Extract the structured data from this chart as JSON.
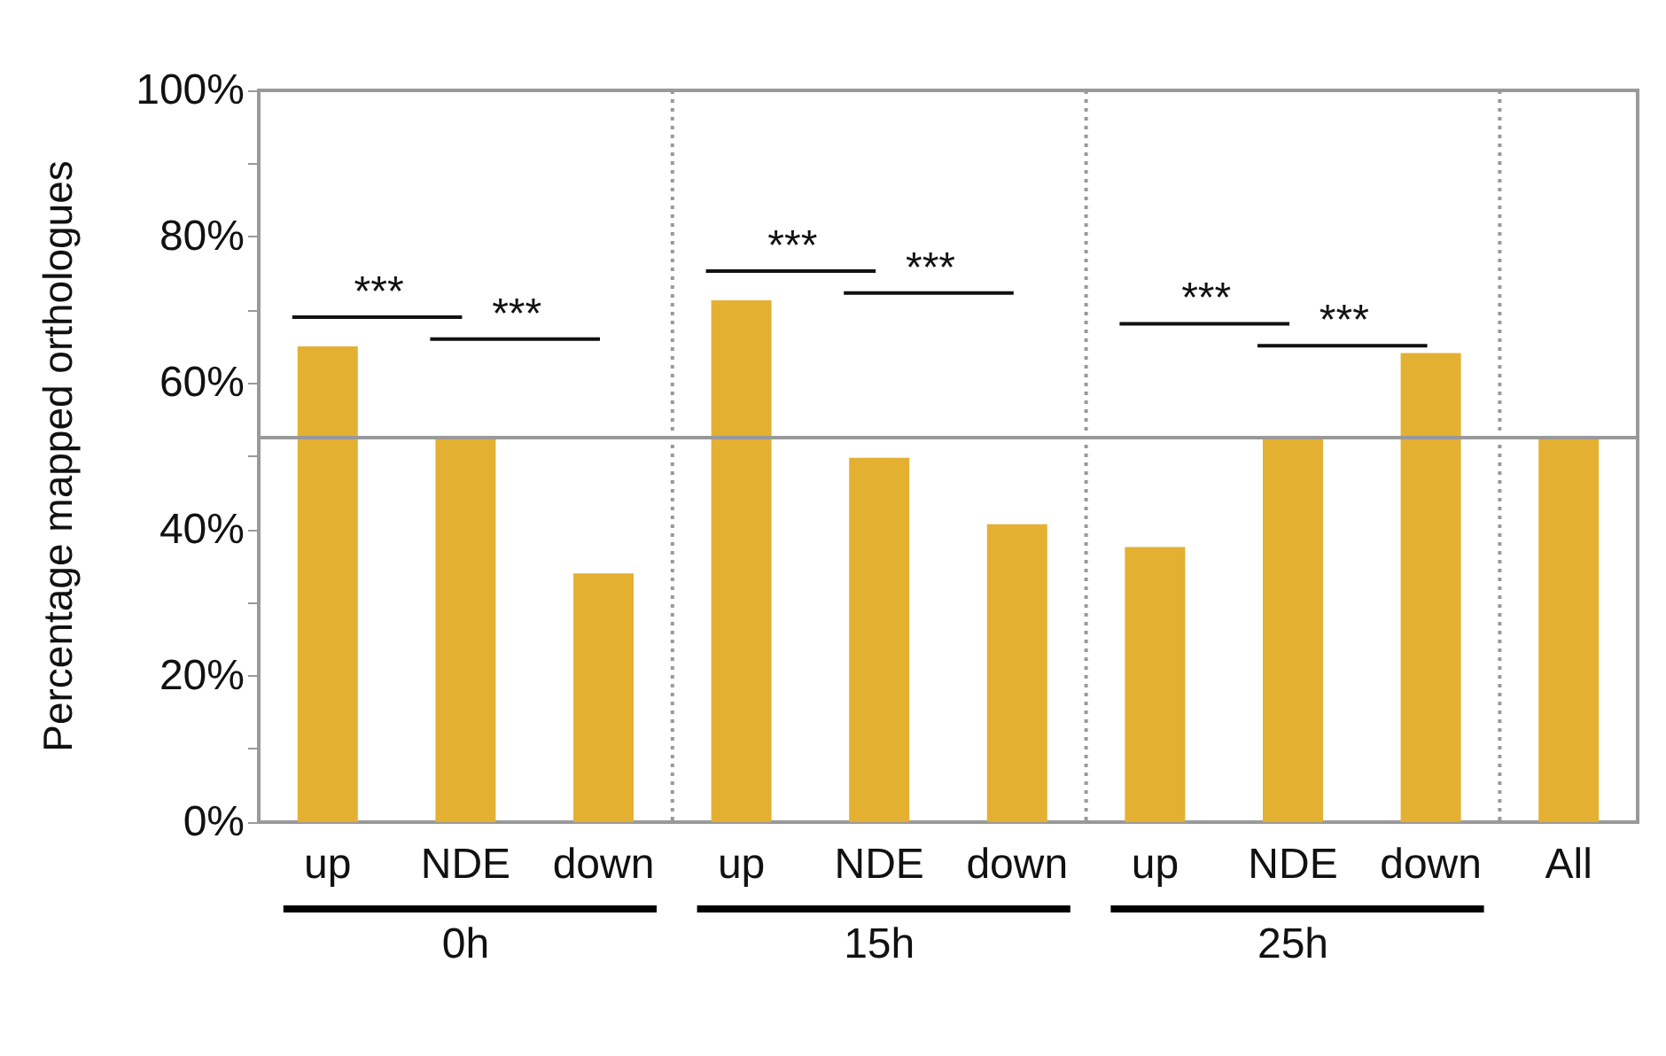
{
  "chart_data": {
    "type": "bar",
    "ylabel": "Percentage mapped orthologues",
    "categories": [
      "up",
      "NDE",
      "down",
      "up",
      "NDE",
      "down",
      "up",
      "NDE",
      "down",
      "All"
    ],
    "values": [
      65,
      52.6,
      34,
      71.3,
      49.8,
      40.7,
      37.6,
      52.6,
      64.1,
      52.6
    ],
    "color": "#e3b032",
    "ylim": [
      0,
      100
    ],
    "yticks": [
      {
        "value": 0,
        "label": "0%"
      },
      {
        "value": 10,
        "label": null
      },
      {
        "value": 20,
        "label": "20%"
      },
      {
        "value": 30,
        "label": null
      },
      {
        "value": 40,
        "label": "40%"
      },
      {
        "value": 50,
        "label": null
      },
      {
        "value": 60,
        "label": "60%"
      },
      {
        "value": 70,
        "label": null
      },
      {
        "value": 80,
        "label": "80%"
      },
      {
        "value": 90,
        "label": null
      },
      {
        "value": 100,
        "label": "100%"
      }
    ],
    "ref_lines": [
      {
        "axis": "y",
        "value": 52.6,
        "color": "#999999",
        "line_style": "solid"
      }
    ],
    "annotations": [
      "***",
      "***",
      "***",
      "***",
      "***",
      "***",
      "0h",
      "15h",
      "25h"
    ],
    "grid": false
  }
}
